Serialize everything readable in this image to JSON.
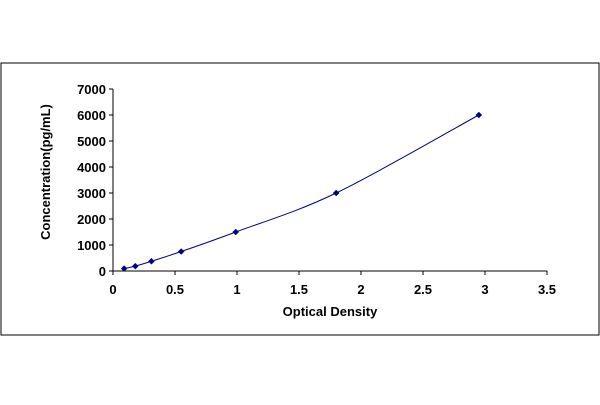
{
  "chart_data": {
    "type": "scatter",
    "title": "",
    "xlabel": "Optical Density",
    "ylabel": "Concentration(pg/mL)",
    "xlim": [
      0,
      3.5
    ],
    "ylim": [
      0,
      7000
    ],
    "x_ticks": [
      "0",
      "0.5",
      "1",
      "1.5",
      "2",
      "2.5",
      "3",
      "3.5"
    ],
    "y_ticks": [
      "0",
      "1000",
      "2000",
      "3000",
      "4000",
      "5000",
      "6000",
      "7000"
    ],
    "grid": false,
    "legend": "none",
    "series": [
      {
        "x": [
          0.09,
          0.18,
          0.31,
          0.55,
          0.99,
          1.8,
          2.95
        ],
        "y": [
          94,
          188,
          375,
          750,
          1500,
          3000,
          6000
        ],
        "marker": "diamond",
        "line": "smooth",
        "color": "#000080"
      }
    ]
  }
}
